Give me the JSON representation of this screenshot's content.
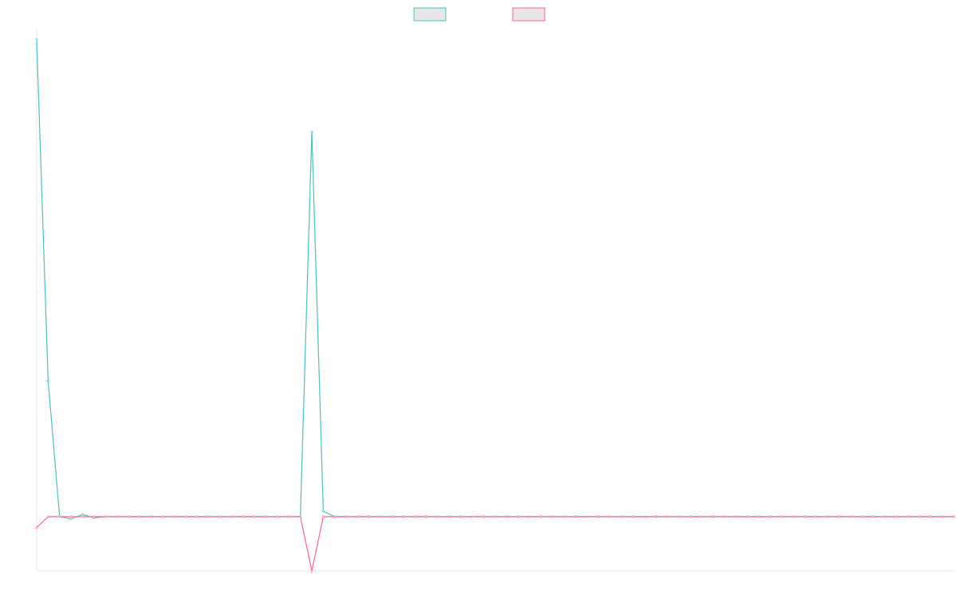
{
  "chart_data": {
    "type": "line",
    "title": "",
    "xlabel": "",
    "ylabel": "",
    "x": [
      0,
      1,
      2,
      3,
      4,
      5,
      6,
      7,
      8,
      9,
      10,
      11,
      12,
      13,
      14,
      15,
      16,
      17,
      18,
      19,
      20,
      21,
      22,
      23,
      24,
      25,
      26,
      27,
      28,
      29,
      30,
      31,
      32,
      33,
      34,
      35,
      36,
      37,
      38,
      39,
      40,
      41,
      42,
      43,
      44,
      45,
      46,
      47,
      48,
      49,
      50,
      51,
      52,
      53,
      54,
      55,
      56,
      57,
      58,
      59,
      60,
      61,
      62,
      63,
      64,
      65,
      66,
      67,
      68,
      69,
      70,
      71,
      72,
      73,
      74,
      75,
      76,
      77,
      78,
      79,
      80
    ],
    "series": [
      {
        "color": "#4bc0c0",
        "values": [
          4.9,
          1.75,
          0.5,
          0.48,
          0.52,
          0.49,
          0.5,
          0.5,
          0.5,
          0.5,
          0.5,
          0.5,
          0.5,
          0.5,
          0.5,
          0.5,
          0.5,
          0.5,
          0.5,
          0.5,
          0.5,
          0.5,
          0.5,
          0.5,
          4.05,
          0.55,
          0.5,
          0.5,
          0.5,
          0.5,
          0.5,
          0.5,
          0.5,
          0.5,
          0.5,
          0.5,
          0.5,
          0.5,
          0.5,
          0.5,
          0.5,
          0.5,
          0.5,
          0.5,
          0.5,
          0.5,
          0.5,
          0.5,
          0.5,
          0.5,
          0.5,
          0.5,
          0.5,
          0.5,
          0.5,
          0.5,
          0.5,
          0.5,
          0.5,
          0.5,
          0.5,
          0.5,
          0.5,
          0.5,
          0.5,
          0.5,
          0.5,
          0.5,
          0.5,
          0.5,
          0.5,
          0.5,
          0.5,
          0.5,
          0.5,
          0.5,
          0.5,
          0.5,
          0.5,
          0.5,
          0.5
        ]
      },
      {
        "color": "#ff6384",
        "values": [
          0.4,
          0.5,
          0.5,
          0.5,
          0.5,
          0.5,
          0.5,
          0.5,
          0.5,
          0.5,
          0.5,
          0.5,
          0.5,
          0.5,
          0.5,
          0.5,
          0.5,
          0.5,
          0.5,
          0.5,
          0.5,
          0.5,
          0.5,
          0.5,
          0.0,
          0.5,
          0.5,
          0.5,
          0.5,
          0.5,
          0.5,
          0.5,
          0.5,
          0.5,
          0.5,
          0.5,
          0.5,
          0.5,
          0.5,
          0.5,
          0.5,
          0.5,
          0.5,
          0.5,
          0.5,
          0.5,
          0.5,
          0.5,
          0.5,
          0.5,
          0.5,
          0.5,
          0.5,
          0.5,
          0.5,
          0.5,
          0.5,
          0.5,
          0.5,
          0.5,
          0.5,
          0.5,
          0.5,
          0.5,
          0.5,
          0.5,
          0.5,
          0.5,
          0.5,
          0.5,
          0.5,
          0.5,
          0.5,
          0.5,
          0.5,
          0.5,
          0.5,
          0.5,
          0.5,
          0.5,
          0.5
        ]
      }
    ],
    "ylim": [
      0,
      5
    ],
    "xlim": [
      0,
      80
    ],
    "grid": false,
    "legend": "top-center",
    "legend_items": [
      {
        "stroke": "#4bc0c0",
        "fill": "#e6e6e6"
      },
      {
        "stroke": "#ff6384",
        "fill": "#e6e6e6"
      }
    ]
  }
}
